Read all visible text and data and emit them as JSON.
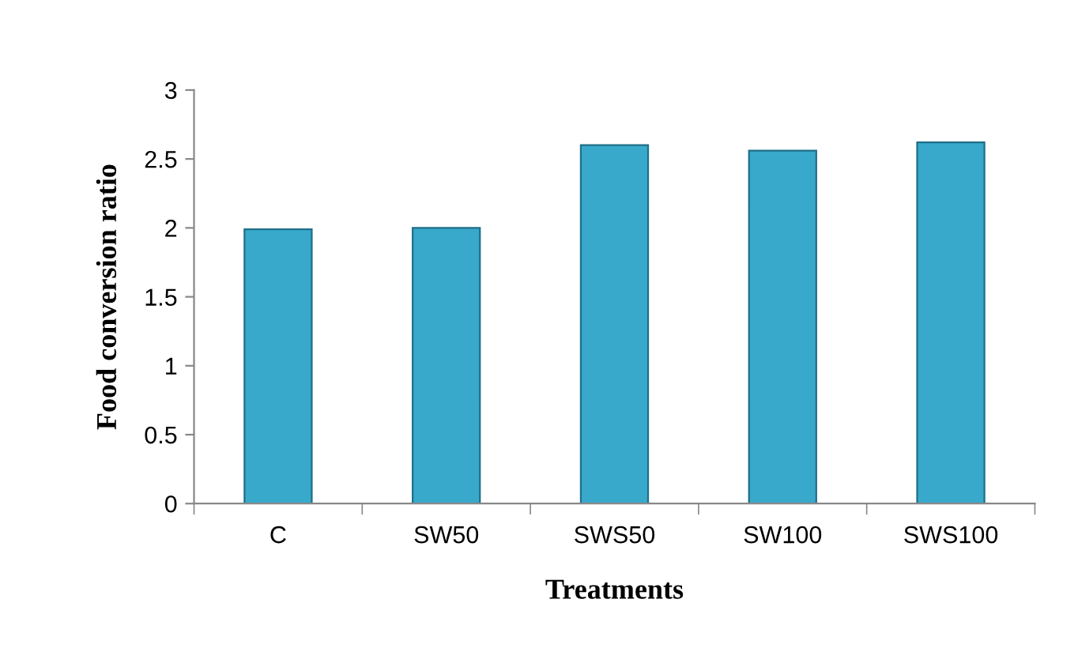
{
  "chart_data": {
    "type": "bar",
    "xlabel": "Treatments",
    "ylabel": "Food conversion ratio",
    "categories": [
      "C",
      "SW50",
      "SWS50",
      "SW100",
      "SWS100"
    ],
    "values": [
      1.99,
      2.0,
      2.6,
      2.56,
      2.62
    ],
    "color": "#38a9cb",
    "ylim": [
      0,
      3
    ],
    "yticks": [
      0,
      0.5,
      1,
      1.5,
      2,
      2.5,
      3
    ],
    "grid": false,
    "legend": false
  }
}
